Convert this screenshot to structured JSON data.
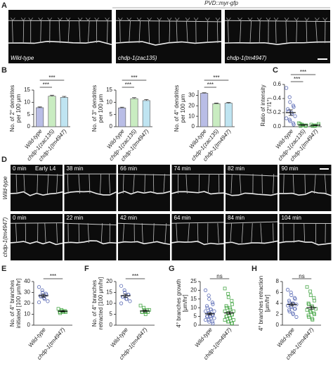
{
  "figure": {
    "A": {
      "panel": "A",
      "title": "PVD::myr-gfp",
      "images": [
        "Wild-type",
        "chdp-1(zac135)",
        "chdp-1(tm4947)"
      ]
    },
    "D": {
      "panel": "D",
      "note": "Early L4",
      "rows": [
        {
          "label": "Wild-type",
          "times": [
            "0 min",
            "38 min",
            "66 min",
            "74 min",
            "82 min",
            "90 min"
          ]
        },
        {
          "label": "chdp-1(tm4947)",
          "times": [
            "0 min",
            "22 min",
            "42 min",
            "64 min",
            "84 min",
            "104 min"
          ]
        }
      ]
    }
  },
  "chart_data": [
    {
      "type": "bar",
      "panel": "B",
      "ylabel": [
        "No. of 2° dendrites",
        "per 100 μm"
      ],
      "categories": [
        "Wild-type",
        "chdp-1(zac135)",
        "chdp-1(tm4947)"
      ],
      "values": [
        7.8,
        12.5,
        12
      ],
      "errors": [
        0.3,
        0.4,
        0.4
      ],
      "colors": [
        "#b9bde6",
        "#c9ecc1",
        "#bfe4f1"
      ],
      "ylim": [
        0,
        15
      ],
      "yticks": [
        0,
        5,
        10,
        15
      ],
      "annotations": [
        "***",
        "***"
      ]
    },
    {
      "type": "bar",
      "ylabel": [
        "No. of 3° dendrites",
        "per 100 μm"
      ],
      "categories": [
        "Wild-type",
        "chdp-1(zac135)",
        "chdp-1(tm4947)"
      ],
      "values": [
        7.7,
        11.5,
        10.7
      ],
      "errors": [
        0.3,
        0.4,
        0.4
      ],
      "colors": [
        "#b9bde6",
        "#c9ecc1",
        "#bfe4f1"
      ],
      "ylim": [
        0,
        15
      ],
      "yticks": [
        0,
        5,
        10,
        15
      ],
      "annotations": [
        "***",
        "***"
      ]
    },
    {
      "type": "bar",
      "ylabel": [
        "No. of 4° dendrites",
        "per 100 μm"
      ],
      "categories": [
        "Wild-type",
        "chdp-1(zac135)",
        "chdp-1(tm4947)"
      ],
      "values": [
        32,
        22,
        22.5
      ],
      "errors": [
        0.5,
        0.6,
        0.6
      ],
      "colors": [
        "#b9bde6",
        "#c9ecc1",
        "#bfe4f1"
      ],
      "ylim": [
        0,
        35
      ],
      "yticks": [
        0,
        10,
        20,
        30
      ],
      "annotations": [
        "***",
        "***"
      ]
    },
    {
      "type": "dot",
      "panel": "C",
      "ylabel": [
        "Ratio of intensity",
        "(2°/1°)"
      ],
      "categories": [
        "Wild-type",
        "chdp-1(zac135)",
        "chdp-1(tm4947)"
      ],
      "points": [
        [
          0.55,
          0.42,
          0.35,
          0.3,
          0.28,
          0.25,
          0.22,
          0.2,
          0.18,
          0.15,
          0.12,
          0.1,
          0.08,
          0.05,
          0.03
        ],
        [
          0.05,
          0.03,
          0.02,
          0.01,
          0.02,
          0.04,
          0.01
        ],
        [
          0.03,
          0.02,
          0.01,
          0.02,
          0.04,
          0.01
        ]
      ],
      "means": [
        0.2,
        0.025,
        0.02
      ],
      "errors": [
        0.04,
        0.005,
        0.005
      ],
      "colors": [
        "#5b6bb5",
        "#4aa84a",
        "#4aa84a"
      ],
      "markers": [
        "circle",
        "square",
        "square"
      ],
      "ylim": [
        0,
        0.6
      ],
      "yticks": [
        {
          "value": 0,
          "label": "0.0"
        },
        {
          "value": 0.2,
          "label": "0.2"
        },
        {
          "value": 0.4,
          "label": "0.4"
        },
        {
          "value": 0.6,
          "label": "0.6"
        }
      ],
      "annotations": [
        "***",
        "***"
      ]
    },
    {
      "type": "dot",
      "panel": "E",
      "ylabel": [
        "No. of 4° branches",
        "initiated [100 μm/hr]"
      ],
      "categories": [
        "Wild-type",
        "chdp-1(tm4947)"
      ],
      "points": [
        [
          35,
          32,
          30,
          29,
          28,
          27,
          26,
          25,
          24,
          22,
          21
        ],
        [
          15,
          14,
          13,
          13,
          12,
          12,
          11,
          12,
          13
        ]
      ],
      "means": [
        27,
        12.8
      ],
      "errors": [
        1.3,
        0.5
      ],
      "colors": [
        "#5b6bb5",
        "#4aa84a"
      ],
      "markers": [
        "circle",
        "square"
      ],
      "ylim": [
        0,
        40
      ],
      "yticks": [
        0,
        10,
        20,
        30,
        40
      ],
      "annotations": [
        "***"
      ]
    },
    {
      "type": "dot",
      "panel": "F",
      "ylabel": [
        "No. of 4° branches",
        "retracted [100 μm/hr]"
      ],
      "categories": [
        "Wild-type",
        "chdp-1(tm4947)"
      ],
      "points": [
        [
          18,
          16,
          15,
          14,
          14,
          13,
          13,
          12,
          12,
          11,
          10
        ],
        [
          9,
          8,
          7,
          7,
          6,
          6,
          6,
          5,
          6,
          7
        ]
      ],
      "means": [
        13.5,
        6.5
      ],
      "errors": [
        0.7,
        0.4
      ],
      "colors": [
        "#5b6bb5",
        "#4aa84a"
      ],
      "markers": [
        "circle",
        "square"
      ],
      "ylim": [
        0,
        20
      ],
      "yticks": [
        0,
        5,
        10,
        15,
        20
      ],
      "annotations": [
        "***"
      ]
    },
    {
      "type": "dot",
      "panel": "G",
      "ylabel": [
        "4° branches growth",
        "[μm/hr]"
      ],
      "categories": [
        "Wild-type",
        "chdp-1(tm4947)"
      ],
      "points": [
        [
          20,
          17,
          15,
          13,
          12,
          11,
          10,
          9,
          9,
          8,
          8,
          7,
          7,
          6,
          6,
          5,
          5,
          5,
          4,
          4,
          3,
          3,
          2,
          2,
          1
        ],
        [
          21,
          18,
          16,
          14,
          12,
          11,
          10,
          10,
          9,
          8,
          8,
          7,
          7,
          6,
          6,
          5,
          5,
          4,
          4,
          3,
          3,
          2,
          2,
          1,
          1
        ]
      ],
      "means": [
        6.5,
        7
      ],
      "errors": [
        0.6,
        0.7
      ],
      "colors": [
        "#5b6bb5",
        "#4aa84a"
      ],
      "markers": [
        "circle",
        "square"
      ],
      "ylim": [
        0,
        25
      ],
      "yticks": [
        0,
        5,
        10,
        15,
        20,
        25
      ],
      "annotations": [
        "ns"
      ]
    },
    {
      "type": "dot",
      "panel": "H",
      "ylabel": [
        "4° branches retraction",
        "[μm/hr]"
      ],
      "categories": [
        "Wild-type",
        "chdp-1(tm4947)"
      ],
      "points": [
        [
          6.5,
          6,
          5.5,
          5,
          4.8,
          4.5,
          4.2,
          4,
          4,
          3.8,
          3.6,
          3.5,
          3.3,
          3,
          3,
          2.8,
          2.5,
          2.2,
          2,
          1.5
        ],
        [
          7,
          6.2,
          5.5,
          5,
          4.5,
          4,
          3.8,
          3.5,
          3.2,
          3,
          2.8,
          2.6,
          2.4,
          2.2,
          2,
          1.8,
          1.5,
          1.2,
          1
        ]
      ],
      "means": [
        3.8,
        3.2
      ],
      "errors": [
        0.25,
        0.3
      ],
      "colors": [
        "#5b6bb5",
        "#4aa84a"
      ],
      "markers": [
        "circle",
        "square"
      ],
      "ylim": [
        0,
        8
      ],
      "yticks": [
        0,
        2,
        4,
        6,
        8
      ],
      "annotations": [
        "ns"
      ]
    }
  ]
}
